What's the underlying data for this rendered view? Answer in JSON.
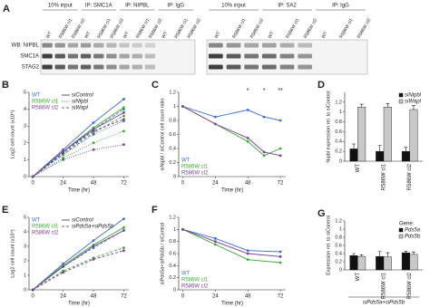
{
  "blot": {
    "panel": "A",
    "row_labels": [
      "WB: NIPBL",
      "SMC1A",
      "STAG2"
    ],
    "left": [
      {
        "name": "10% input",
        "lanes": [
          "WT",
          "R586W cl1",
          "R586W cl2"
        ]
      },
      {
        "name": "IP: SMC1A",
        "lanes": [
          "WT",
          "R586W cl1",
          "R586W cl2"
        ]
      },
      {
        "name": "IP: NIPBL",
        "lanes": [
          "WT",
          "R586W cl1",
          "R586W cl2"
        ]
      },
      {
        "name": "IP: IgG",
        "lanes": [
          "WT",
          "R586W cl1",
          "R586W cl2"
        ]
      }
    ],
    "right": [
      {
        "name": "10% input",
        "lanes": [
          "WT",
          "R586W cl1",
          "R586W cl2"
        ]
      },
      {
        "name": "IP: SA2",
        "lanes": [
          "WT",
          "R586W cl1",
          "R586W cl2"
        ]
      },
      {
        "name": "IP: IgG",
        "lanes": [
          "WT",
          "R586W cl1",
          "R586W cl2"
        ]
      }
    ]
  },
  "chart_data": [
    {
      "panel": "B",
      "type": "line",
      "xlabel": "Time (hr)",
      "ylabel": "Log2 cell count (x10⁴)",
      "x": [
        0,
        24,
        48,
        72
      ],
      "xlim": [
        -3,
        76
      ],
      "xticks": [
        0,
        24,
        48,
        72
      ],
      "ylim": [
        0,
        5
      ],
      "yticks": [
        0,
        1,
        2,
        3,
        4,
        5
      ],
      "legend": "upper left",
      "treatments": [
        {
          "name": "siControl",
          "dash": "none"
        },
        {
          "name": "siNipbl",
          "dash": "1,1.5"
        },
        {
          "name": "siWapl",
          "dash": "3,2"
        }
      ],
      "series": [
        {
          "name": "WT",
          "color": "#3b6fd6",
          "values_by_treatment": [
            [
              0,
              1.6,
              3.2,
              4.6
            ],
            [
              0,
              1.3,
              2.5,
              3.3
            ],
            [
              0,
              1.4,
              2.8,
              4.0
            ]
          ]
        },
        {
          "name": "R586W cl1",
          "color": "#3aaa35",
          "values_by_treatment": [
            [
              0,
              1.5,
              2.9,
              4.1
            ],
            [
              0,
              1.1,
              2.0,
              2.7
            ],
            [
              0,
              1.3,
              2.6,
              3.6
            ]
          ]
        },
        {
          "name": "R586W cl2",
          "color": "#7a3f98",
          "values_by_treatment": [
            [
              0,
              1.5,
              2.8,
              3.8
            ],
            [
              0,
              1.0,
              1.6,
              1.9
            ],
            [
              0,
              1.4,
              2.7,
              3.4
            ]
          ]
        }
      ]
    },
    {
      "panel": "C",
      "type": "line",
      "xlabel": "Time (hr)",
      "ylabel": "siNipbl / siControl cell count ratio",
      "x": [
        0,
        24,
        48,
        60,
        72
      ],
      "xlim": [
        -3,
        76
      ],
      "xticks": [
        0,
        24,
        48,
        72
      ],
      "ylim": [
        0,
        1.2
      ],
      "yticks": [
        0,
        0.2,
        0.4,
        0.6,
        0.8,
        1,
        1.2
      ],
      "legend": "lower left",
      "significance": [
        null,
        null,
        "*",
        "*",
        "**"
      ],
      "series": [
        {
          "name": "WT",
          "color": "#3b6fd6",
          "values": [
            1,
            0.85,
            0.95,
            0.85,
            0.8
          ]
        },
        {
          "name": "R586W cl1",
          "color": "#3aaa35",
          "values": [
            1,
            0.75,
            0.5,
            0.3,
            0.4
          ]
        },
        {
          "name": "R586W cl2",
          "color": "#7a3f98",
          "values": [
            1,
            0.75,
            0.55,
            0.35,
            0.3
          ]
        }
      ]
    },
    {
      "panel": "D",
      "type": "bar",
      "ylabel": "Nipbl expression rel. to siControl",
      "categories": [
        "WT",
        "R586W cl1",
        "R586W cl2"
      ],
      "ylim": [
        0,
        1.4
      ],
      "yticks": [
        0,
        0.2,
        0.4,
        0.6,
        0.8,
        1,
        1.2
      ],
      "legend": "upper right",
      "series": [
        {
          "name": "siNipbl",
          "color": "#111111",
          "values": [
            0.25,
            0.2,
            0.2
          ],
          "errors": [
            0.1,
            0.12,
            0.08
          ]
        },
        {
          "name": "siWapl",
          "color": "#c8c8c8",
          "values": [
            1.1,
            1.1,
            1.05
          ],
          "errors": [
            0.06,
            0.07,
            0.08
          ]
        }
      ]
    },
    {
      "panel": "E",
      "type": "line",
      "xlabel": "Time (hr)",
      "ylabel": "Log2 cell count (x10⁴)",
      "x": [
        0,
        24,
        48,
        72
      ],
      "xlim": [
        -3,
        76
      ],
      "xticks": [
        0,
        24,
        48,
        72
      ],
      "ylim": [
        0,
        5
      ],
      "yticks": [
        0,
        1,
        2,
        3,
        4,
        5
      ],
      "legend": "upper left",
      "treatments": [
        {
          "name": "siControl",
          "dash": "none"
        },
        {
          "name": "siPds5a+siPds5b",
          "dash": "3,2"
        }
      ],
      "series": [
        {
          "name": "WT",
          "color": "#3b6fd6",
          "values_by_treatment": [
            [
              0,
              1.8,
              3.4,
              4.9
            ],
            [
              0,
              1.6,
              2.9,
              4.1
            ]
          ]
        },
        {
          "name": "R586W cl1",
          "color": "#3aaa35",
          "values_by_treatment": [
            [
              0,
              1.7,
              3.1,
              4.3
            ],
            [
              0,
              1.3,
              2.2,
              2.9
            ]
          ]
        },
        {
          "name": "R586W cl2",
          "color": "#7a3f98",
          "values_by_treatment": [
            [
              0,
              1.6,
              3.0,
              4.1
            ],
            [
              0,
              1.2,
              2.1,
              2.7
            ]
          ]
        }
      ]
    },
    {
      "panel": "F",
      "type": "line",
      "xlabel": "Time (hr)",
      "ylabel": "siPds5a+siPds5b / siControl",
      "x": [
        0,
        24,
        48,
        72
      ],
      "xlim": [
        -3,
        76
      ],
      "xticks": [
        0,
        24,
        48,
        72
      ],
      "ylim": [
        0,
        1.2
      ],
      "yticks": [
        0,
        0.2,
        0.4,
        0.6,
        0.8,
        1,
        1.2
      ],
      "legend": "lower left",
      "series": [
        {
          "name": "WT",
          "color": "#3b6fd6",
          "values": [
            1,
            0.85,
            0.65,
            0.63
          ]
        },
        {
          "name": "R586W cl1",
          "color": "#3aaa35",
          "values": [
            1,
            0.75,
            0.5,
            0.45
          ]
        },
        {
          "name": "R586W cl2",
          "color": "#7a3f98",
          "values": [
            1,
            0.8,
            0.6,
            0.55
          ]
        }
      ]
    },
    {
      "panel": "G",
      "type": "bar",
      "ylabel": "Expression rel. to siControl",
      "xlabel": "siPds5a+siPds5b",
      "categories": [
        "WT",
        "R586W cl1",
        "R586W cl2"
      ],
      "ylim": [
        0,
        1.2
      ],
      "yticks": [
        0,
        0.2,
        0.4,
        0.6,
        0.8,
        1,
        1.2
      ],
      "legend": "upper right",
      "legend_title": "Gene:",
      "series": [
        {
          "name": "Pds5a",
          "color": "#111111",
          "values": [
            0.35,
            0.33,
            0.42
          ],
          "errors": [
            0.05,
            0.12,
            0.04
          ]
        },
        {
          "name": "Pds5b",
          "color": "#c8c8c8",
          "values": [
            0.33,
            0.32,
            0.38
          ],
          "errors": [
            0.04,
            0.1,
            0.06
          ]
        }
      ]
    }
  ]
}
